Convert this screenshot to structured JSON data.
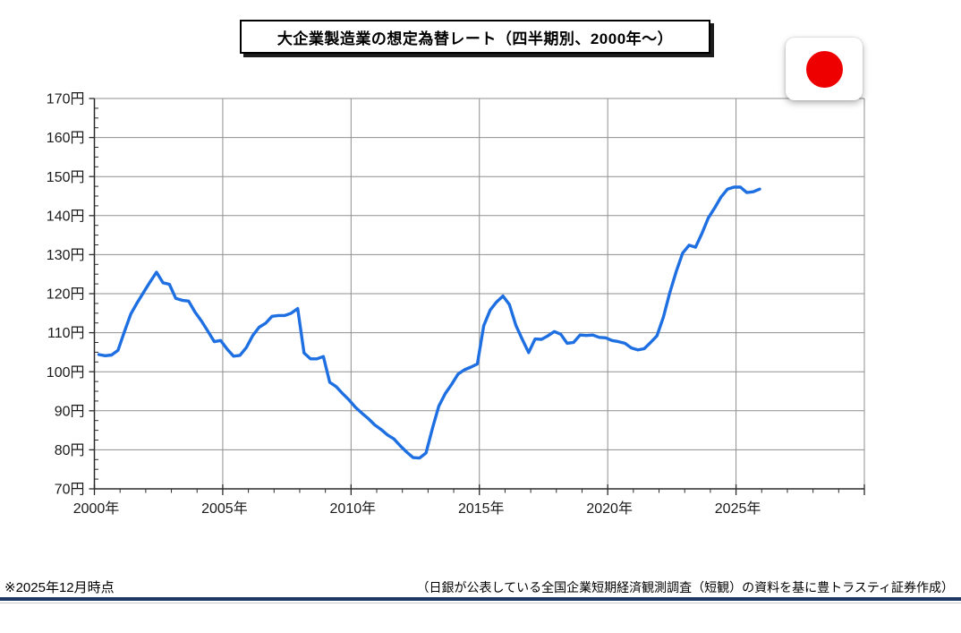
{
  "title": "大企業製造業の想定為替レート（四半期別、2000年～）",
  "flag": {
    "name": "japan-flag",
    "bg_color": "#ffffff",
    "sun_color": "#ef0000"
  },
  "footer": {
    "as_of_note": "※2025年12月時点",
    "source_note": "（日銀が公表している全国企業短期経済観測調査（短観）の資料を基に豊トラスティ証券作成）",
    "rule_color": "#1f3864"
  },
  "chart_data": {
    "type": "line",
    "title": "大企業製造業の想定為替レート（四半期別、2000年～）",
    "frequency": "quarterly (Mar/Jun/Sep/Dec Tankan surveys)",
    "unit": "円/ドル",
    "line_color": "#1e6fe1",
    "grid_color": "#8f8f8f",
    "axis_color": "#2b2b2b",
    "label_color": "#1a1a1a",
    "grid": true,
    "legend": false,
    "x_axis": {
      "min_year": 2000,
      "max_year": 2030,
      "major_tick_years": 5,
      "minor_tick_years": 1,
      "tick_values": [
        2000,
        2005,
        2010,
        2015,
        2020,
        2025
      ],
      "tick_labels": [
        "2000年",
        "2005年",
        "2010年",
        "2015年",
        "2020年",
        "2025年"
      ]
    },
    "y_axis": {
      "min": 70,
      "max": 170,
      "major_tick": 10,
      "minor_tick": 2.5,
      "tick_values": [
        70,
        80,
        90,
        100,
        110,
        120,
        130,
        140,
        150,
        160,
        170
      ],
      "tick_labels": [
        "70円",
        "80円",
        "90円",
        "100円",
        "110円",
        "120円",
        "130円",
        "140円",
        "150円",
        "160円",
        "170円"
      ]
    },
    "series": [
      {
        "name": "大企業製造業の想定為替レート",
        "start_year": 2000,
        "survey_month_offsets": [
          0.17,
          0.42,
          0.67,
          0.92
        ],
        "quarters": [
          "2000/3",
          "2000/6",
          "2000/9",
          "2000/12",
          "2001/3",
          "2001/6",
          "2001/9",
          "2001/12",
          "2002/3",
          "2002/6",
          "2002/9",
          "2002/12",
          "2003/3",
          "2003/6",
          "2003/9",
          "2003/12",
          "2004/3",
          "2004/6",
          "2004/9",
          "2004/12",
          "2005/3",
          "2005/6",
          "2005/9",
          "2005/12",
          "2006/3",
          "2006/6",
          "2006/9",
          "2006/12",
          "2007/3",
          "2007/6",
          "2007/9",
          "2007/12",
          "2008/3",
          "2008/6",
          "2008/9",
          "2008/12",
          "2009/3",
          "2009/6",
          "2009/9",
          "2009/12",
          "2010/3",
          "2010/6",
          "2010/9",
          "2010/12",
          "2011/3",
          "2011/6",
          "2011/9",
          "2011/12",
          "2012/3",
          "2012/6",
          "2012/9",
          "2012/12",
          "2013/3",
          "2013/6",
          "2013/9",
          "2013/12",
          "2014/3",
          "2014/6",
          "2014/9",
          "2014/12",
          "2015/3",
          "2015/6",
          "2015/9",
          "2015/12",
          "2016/3",
          "2016/6",
          "2016/9",
          "2016/12",
          "2017/3",
          "2017/6",
          "2017/9",
          "2017/12",
          "2018/3",
          "2018/6",
          "2018/9",
          "2018/12",
          "2019/3",
          "2019/6",
          "2019/9",
          "2019/12",
          "2020/3",
          "2020/6",
          "2020/9",
          "2020/12",
          "2021/3",
          "2021/6",
          "2021/9",
          "2021/12",
          "2022/3",
          "2022/6",
          "2022/9",
          "2022/12",
          "2023/3",
          "2023/6",
          "2023/9",
          "2023/12",
          "2024/3",
          "2024/6",
          "2024/9",
          "2024/12",
          "2025/3",
          "2025/6",
          "2025/9",
          "2025/12"
        ],
        "values": [
          104.4,
          104.1,
          104.3,
          105.5,
          110.3,
          114.8,
          117.7,
          120.4,
          123.0,
          125.5,
          122.8,
          122.4,
          118.8,
          118.3,
          118.1,
          115.3,
          113.0,
          110.4,
          107.7,
          108.0,
          105.8,
          104.0,
          104.2,
          106.2,
          109.3,
          111.4,
          112.4,
          114.2,
          114.4,
          114.4,
          115.0,
          116.2,
          104.8,
          103.3,
          103.3,
          103.9,
          97.3,
          96.2,
          94.4,
          92.8,
          90.9,
          89.4,
          88.0,
          86.4,
          85.2,
          83.8,
          82.8,
          81.0,
          79.4,
          78.0,
          77.9,
          79.2,
          85.5,
          91.2,
          94.4,
          96.8,
          99.4,
          100.5,
          101.2,
          102.0,
          111.8,
          115.8,
          117.9,
          119.4,
          117.2,
          111.9,
          108.3,
          104.9,
          108.4,
          108.3,
          109.2,
          110.3,
          109.6,
          107.3,
          107.5,
          109.4,
          109.3,
          109.4,
          108.8,
          108.7,
          108.0,
          107.7,
          107.3,
          106.1,
          105.6,
          105.9,
          107.5,
          109.2,
          114.0,
          120.3,
          125.7,
          130.4,
          132.4,
          131.9,
          135.4,
          139.4,
          142.0,
          144.8,
          146.8,
          147.3,
          147.3,
          145.9,
          146.1,
          146.8
        ]
      }
    ]
  }
}
